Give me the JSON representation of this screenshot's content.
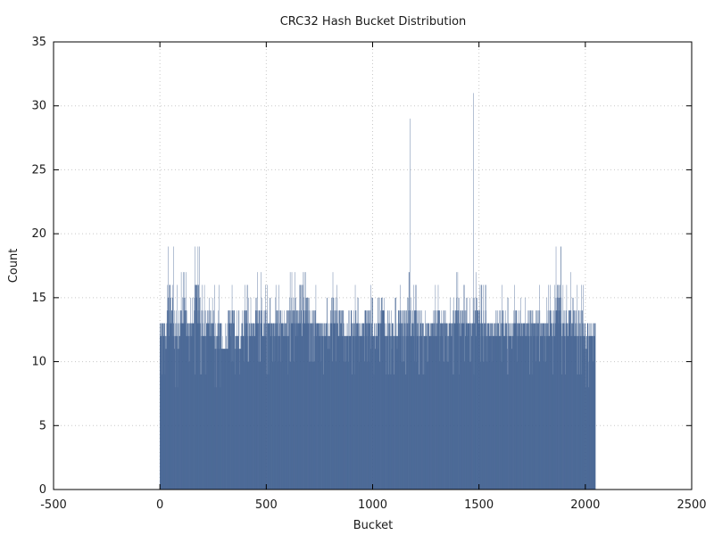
{
  "chart_data": {
    "type": "bar",
    "title": "CRC32 Hash Bucket Distribution",
    "xlabel": "Bucket",
    "ylabel": "Count",
    "xlim": [
      -500,
      2500
    ],
    "ylim": [
      0,
      35
    ],
    "xticks": [
      -500,
      0,
      500,
      1000,
      1500,
      2000,
      2500
    ],
    "yticks": [
      0,
      5,
      10,
      15,
      20,
      25,
      30,
      35
    ],
    "grid": true,
    "bar_color": "#3f5f8f",
    "bucket_range": [
      0,
      2047
    ],
    "typical_count_range": [
      8,
      17
    ],
    "values_by_bucket_group": {
      "bucket_group_size": 32,
      "max_counts": [
        15,
        19,
        16,
        17,
        15,
        19,
        16,
        17,
        16,
        13,
        16,
        14,
        16,
        15,
        17,
        16,
        15,
        16,
        16,
        17,
        16,
        17,
        16,
        15,
        15,
        17,
        16,
        14,
        16,
        15,
        16,
        15,
        17,
        16,
        15,
        16,
        29,
        16,
        16,
        15,
        16,
        16,
        15,
        17,
        16,
        15,
        31,
        16,
        15,
        16,
        16,
        15,
        16,
        15,
        16,
        16,
        15,
        16,
        19,
        16,
        17,
        16,
        16,
        15
      ],
      "min_counts": [
        9,
        9,
        8,
        9,
        10,
        9,
        9,
        9,
        8,
        9,
        10,
        9,
        10,
        10,
        10,
        9,
        10,
        10,
        9,
        10,
        10,
        10,
        10,
        10,
        9,
        10,
        10,
        10,
        9,
        10,
        10,
        9,
        10,
        9,
        9,
        10,
        9,
        10,
        9,
        10,
        9,
        10,
        10,
        9,
        10,
        10,
        9,
        10,
        10,
        9,
        10,
        9,
        10,
        10,
        9,
        10,
        10,
        9,
        10,
        9,
        9,
        9,
        8,
        10
      ]
    },
    "peaks": [
      {
        "bucket": 1175,
        "count": 29
      },
      {
        "bucket": 1474,
        "count": 31
      }
    ]
  },
  "colors": {
    "bars": "#3f5f8f",
    "grid": "#c8c8c8",
    "axes": "#000000"
  }
}
